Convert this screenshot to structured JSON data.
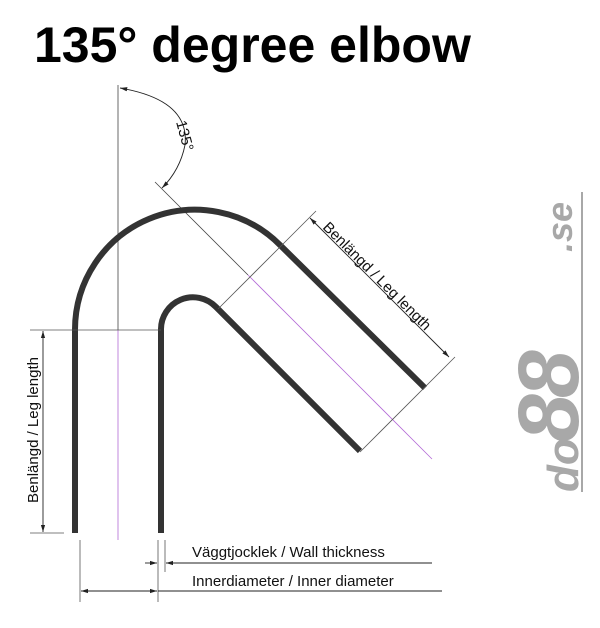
{
  "title": "135° degree elbow",
  "angle_label": "135°",
  "labels": {
    "leg_length_vertical": "Benlängd / Leg length",
    "leg_length_diagonal": "Benlängd / Leg length",
    "wall_thickness": "Väggtjocklek / Wall thickness",
    "inner_diameter": "Innerdiameter / Inner diameter"
  },
  "logo": "do88.se",
  "colors": {
    "pipe": "#333333",
    "centerline": "#b36ad6",
    "dimension": "#555555",
    "logo": "#a8a8a8"
  }
}
